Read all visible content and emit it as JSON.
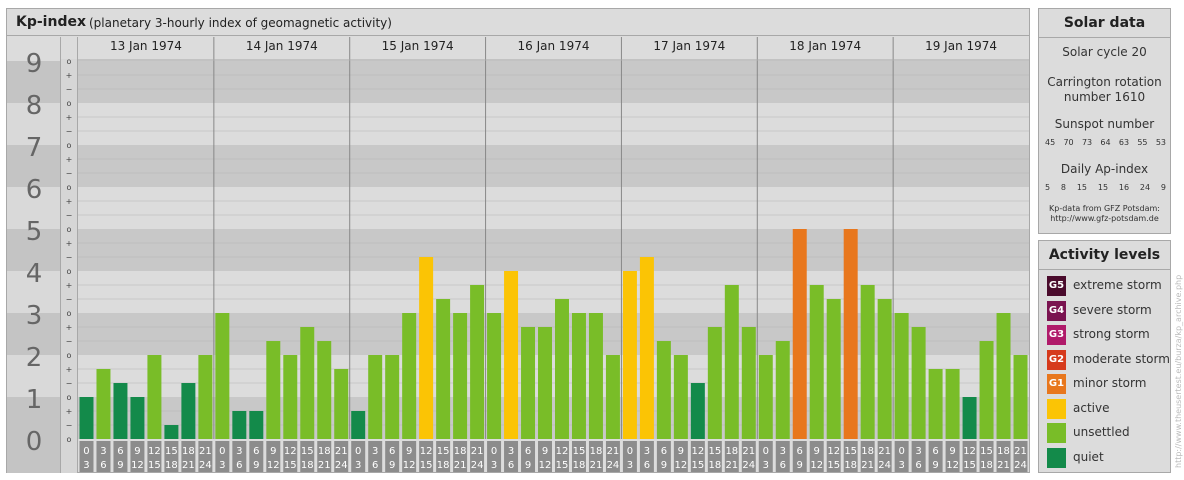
{
  "header": {
    "title": "Kp-index",
    "subtitle": "(planetary 3-hourly index of geomagnetic activity)"
  },
  "solar": {
    "title": "Solar data",
    "cycle": "Solar cycle 20",
    "carrington_line1": "Carrington rotation",
    "carrington_line2": "number 1610",
    "sunspot_label": "Sunspot number",
    "sunspot_numbers": [
      "45",
      "70",
      "73",
      "64",
      "63",
      "55",
      "53"
    ],
    "ap_label": "Daily Ap-index",
    "ap_values": [
      "5",
      "8",
      "15",
      "15",
      "16",
      "24",
      "9"
    ],
    "source_line1": "Kp-data from GFZ Potsdam:",
    "source_line2": "http://www.gfz-potsdam.de"
  },
  "activity": {
    "title": "Activity levels",
    "levels": [
      {
        "badge": "G5",
        "label": "extreme storm",
        "color": "#4a0b2c"
      },
      {
        "badge": "G4",
        "label": "severe storm",
        "color": "#7a1350"
      },
      {
        "badge": "G3",
        "label": "strong storm",
        "color": "#b01a6a"
      },
      {
        "badge": "G2",
        "label": "moderate storm",
        "color": "#d63a1c"
      },
      {
        "badge": "G1",
        "label": "minor storm",
        "color": "#e8771d"
      },
      {
        "badge": "",
        "label": "active",
        "color": "#fbc405"
      },
      {
        "badge": "",
        "label": "unsettled",
        "color": "#79bd28"
      },
      {
        "badge": "",
        "label": "quiet",
        "color": "#138a4a"
      }
    ]
  },
  "watermark": "http://www.theusertest.eu/burza/kp_archive.php",
  "chart_data": {
    "type": "bar",
    "ylim": [
      0,
      9
    ],
    "y_ticks": [
      "0",
      "1",
      "2",
      "3",
      "4",
      "5",
      "6",
      "7",
      "8",
      "9"
    ],
    "sub_ticks": [
      "o",
      "+",
      "−"
    ],
    "days": [
      "13 Jan 1974",
      "14 Jan 1974",
      "15 Jan 1974",
      "16 Jan 1974",
      "17 Jan 1974",
      "18 Jan 1974",
      "19 Jan 1974"
    ],
    "interval_start": [
      "0",
      "3",
      "6",
      "9",
      "12",
      "15",
      "18",
      "21"
    ],
    "interval_end": [
      "3",
      "6",
      "9",
      "12",
      "15",
      "18",
      "21",
      "24"
    ],
    "kp_values": [
      1.0,
      1.667,
      1.333,
      1.0,
      2.0,
      0.333,
      1.333,
      2.0,
      3.0,
      0.667,
      0.667,
      2.333,
      2.0,
      2.667,
      2.333,
      1.667,
      0.667,
      2.0,
      2.0,
      3.0,
      4.333,
      3.333,
      3.0,
      3.667,
      3.0,
      4.0,
      2.667,
      2.667,
      3.333,
      3.0,
      3.0,
      2.0,
      4.0,
      4.333,
      2.333,
      2.0,
      1.333,
      2.667,
      3.667,
      2.667,
      2.0,
      2.333,
      5.0,
      3.667,
      3.333,
      5.0,
      3.667,
      3.333,
      3.0,
      2.667,
      1.667,
      1.667,
      1.0,
      2.333,
      3.0,
      2.0
    ],
    "colors": {
      "quiet": "#138a4a",
      "unsettled": "#79bd28",
      "active": "#fbc405",
      "minor_storm": "#e8771d",
      "moderate_storm": "#d63a1c"
    }
  }
}
